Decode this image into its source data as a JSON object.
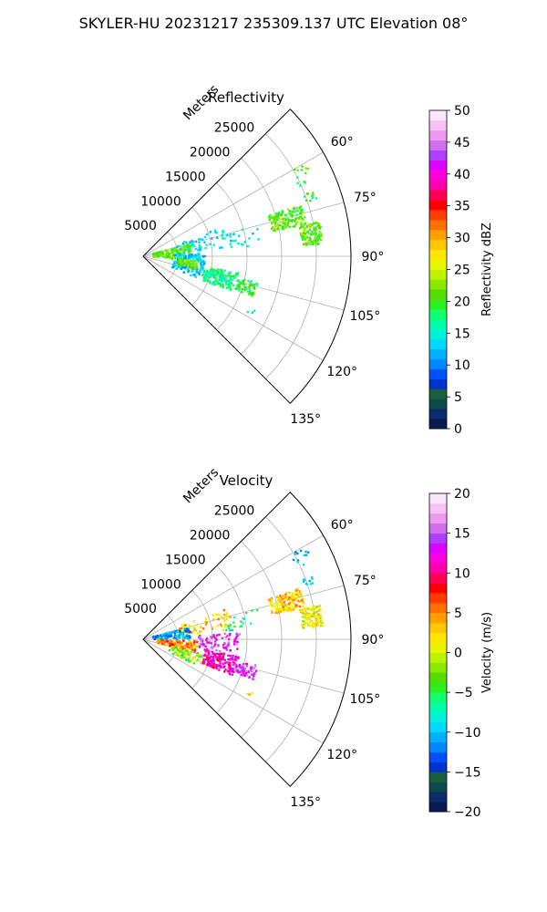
{
  "figure": {
    "suptitle": "SKYLER-HU  20231217  235309.137 UTC Elevation 08°"
  },
  "chart_data": [
    {
      "type": "polar_wedge",
      "title": "Reflectivity",
      "radial_label": "Meters",
      "radial_ticks": [
        5000,
        10000,
        15000,
        20000,
        25000
      ],
      "radial_tick_labels": [
        "5000",
        "10000",
        "15000",
        "20000",
        "25000"
      ],
      "rmax": 30000,
      "theta_ticks_deg": [
        60,
        75,
        90,
        105,
        120,
        135
      ],
      "theta_tick_labels": [
        "60°",
        "75°",
        "90°",
        "105°",
        "120°",
        "135°"
      ],
      "theta_range_deg": [
        45,
        135
      ],
      "colorbar": {
        "label": "Reflectivity dBZ",
        "range": [
          0,
          50
        ],
        "ticks": [
          0,
          5,
          10,
          15,
          20,
          25,
          30,
          35,
          40,
          45,
          50
        ],
        "tick_labels": [
          "0",
          "5",
          "10",
          "15",
          "20",
          "25",
          "30",
          "35",
          "40",
          "45",
          "50"
        ],
        "colors": [
          "#081a52",
          "#0b2d6b",
          "#0f4a4a",
          "#1a6040",
          "#0033cc",
          "#0050ff",
          "#0088ff",
          "#00b0ff",
          "#00d8ff",
          "#00f0d8",
          "#00ffa8",
          "#10ff70",
          "#2aee20",
          "#55dd00",
          "#88e800",
          "#bbf200",
          "#e8f500",
          "#ffe600",
          "#ffc800",
          "#ffa000",
          "#ff7000",
          "#ff3c00",
          "#ff0000",
          "#ff0055",
          "#ff00aa",
          "#ff00dd",
          "#e000ff",
          "#b040ff",
          "#d070f0",
          "#ee99ee",
          "#f6c2f2",
          "#fbe6fb"
        ]
      },
      "echo_regions": [
        {
          "az_deg": [
            69,
            72
          ],
          "range_m": [
            24500,
            26500
          ],
          "value": 19,
          "count": 10
        },
        {
          "az_deg": [
            72,
            79
          ],
          "range_m": [
            19000,
            24000
          ],
          "value": 21,
          "count": 150
        },
        {
          "az_deg": [
            79,
            86
          ],
          "range_m": [
            23000,
            26000
          ],
          "value": 21,
          "count": 110
        },
        {
          "az_deg": [
            60,
            66
          ],
          "range_m": [
            24500,
            27000
          ],
          "value": 20,
          "count": 12
        },
        {
          "az_deg": [
            70,
            84
          ],
          "range_m": [
            5000,
            13000
          ],
          "value": 14,
          "count": 70
        },
        {
          "az_deg": [
            75,
            95
          ],
          "range_m": [
            1500,
            7000
          ],
          "value": 21,
          "count": 140
        },
        {
          "az_deg": [
            86,
            112
          ],
          "range_m": [
            4500,
            9000
          ],
          "value": 13,
          "count": 150
        },
        {
          "az_deg": [
            95,
            104
          ],
          "range_m": [
            5000,
            8000
          ],
          "value": 22,
          "count": 60
        },
        {
          "az_deg": [
            100,
            112
          ],
          "range_m": [
            9000,
            14000
          ],
          "value": 17,
          "count": 160
        },
        {
          "az_deg": [
            103,
            110
          ],
          "range_m": [
            14000,
            17000
          ],
          "value": 19,
          "count": 60
        },
        {
          "az_deg": [
            75,
            85
          ],
          "range_m": [
            12000,
            17000
          ],
          "value": 14,
          "count": 20
        },
        {
          "az_deg": [
            115,
            120
          ],
          "range_m": [
            17000,
            18500
          ],
          "value": 15,
          "count": 3
        }
      ]
    },
    {
      "type": "polar_wedge",
      "title": "Velocity",
      "radial_label": "Meters",
      "radial_ticks": [
        5000,
        10000,
        15000,
        20000,
        25000
      ],
      "radial_tick_labels": [
        "5000",
        "10000",
        "15000",
        "20000",
        "25000"
      ],
      "rmax": 30000,
      "theta_ticks_deg": [
        60,
        75,
        90,
        105,
        120,
        135
      ],
      "theta_tick_labels": [
        "60°",
        "75°",
        "90°",
        "105°",
        "120°",
        "135°"
      ],
      "theta_range_deg": [
        45,
        135
      ],
      "colorbar": {
        "label": "Velocity (m/s)",
        "range": [
          -20,
          20
        ],
        "ticks": [
          -20,
          -15,
          -10,
          -5,
          0,
          5,
          10,
          15,
          20
        ],
        "tick_labels": [
          "−20",
          "−15",
          "−10",
          "−5",
          "0",
          "5",
          "10",
          "15",
          "20"
        ],
        "colors": [
          "#081a52",
          "#0b2d6b",
          "#0f4a4a",
          "#1a6040",
          "#0033cc",
          "#0050ff",
          "#0088ff",
          "#00b0ff",
          "#00d8ff",
          "#00f0d8",
          "#00ffa8",
          "#10ff70",
          "#2aee20",
          "#55dd00",
          "#88e800",
          "#bbf200",
          "#e8f500",
          "#ffe600",
          "#ffc800",
          "#ffa000",
          "#ff7000",
          "#ff3c00",
          "#ff0000",
          "#ff0055",
          "#ff00aa",
          "#ff00dd",
          "#e000ff",
          "#b040ff",
          "#d070f0",
          "#ee99ee",
          "#f6c2f2",
          "#fbe6fb"
        ]
      },
      "echo_regions": [
        {
          "az_deg": [
            69,
            72
          ],
          "range_m": [
            24500,
            26500
          ],
          "value": -9,
          "count": 10
        },
        {
          "az_deg": [
            72,
            79
          ],
          "range_m": [
            19000,
            24000
          ],
          "value": 3,
          "count": 150
        },
        {
          "az_deg": [
            79,
            86
          ],
          "range_m": [
            23000,
            26000
          ],
          "value": 1,
          "count": 110
        },
        {
          "az_deg": [
            60,
            66
          ],
          "range_m": [
            24500,
            27000
          ],
          "value": -10,
          "count": 12
        },
        {
          "az_deg": [
            70,
            84
          ],
          "range_m": [
            5000,
            13000
          ],
          "value": 3,
          "count": 70
        },
        {
          "az_deg": [
            75,
            90
          ],
          "range_m": [
            1500,
            7000
          ],
          "value": -11,
          "count": 140
        },
        {
          "az_deg": [
            92,
            104
          ],
          "range_m": [
            2000,
            8000
          ],
          "value": 5,
          "count": 120
        },
        {
          "az_deg": [
            86,
            100
          ],
          "range_m": [
            8000,
            14000
          ],
          "value": 14,
          "count": 80
        },
        {
          "az_deg": [
            100,
            112
          ],
          "range_m": [
            9000,
            14000
          ],
          "value": 11,
          "count": 160
        },
        {
          "az_deg": [
            103,
            110
          ],
          "range_m": [
            14000,
            17000
          ],
          "value": 14,
          "count": 60
        },
        {
          "az_deg": [
            104,
            116
          ],
          "range_m": [
            4000,
            9000
          ],
          "value": -2,
          "count": 60
        },
        {
          "az_deg": [
            75,
            85
          ],
          "range_m": [
            12000,
            17000
          ],
          "value": -7,
          "count": 20
        },
        {
          "az_deg": [
            115,
            120
          ],
          "range_m": [
            17000,
            18500
          ],
          "value": 3,
          "count": 3
        }
      ]
    }
  ]
}
